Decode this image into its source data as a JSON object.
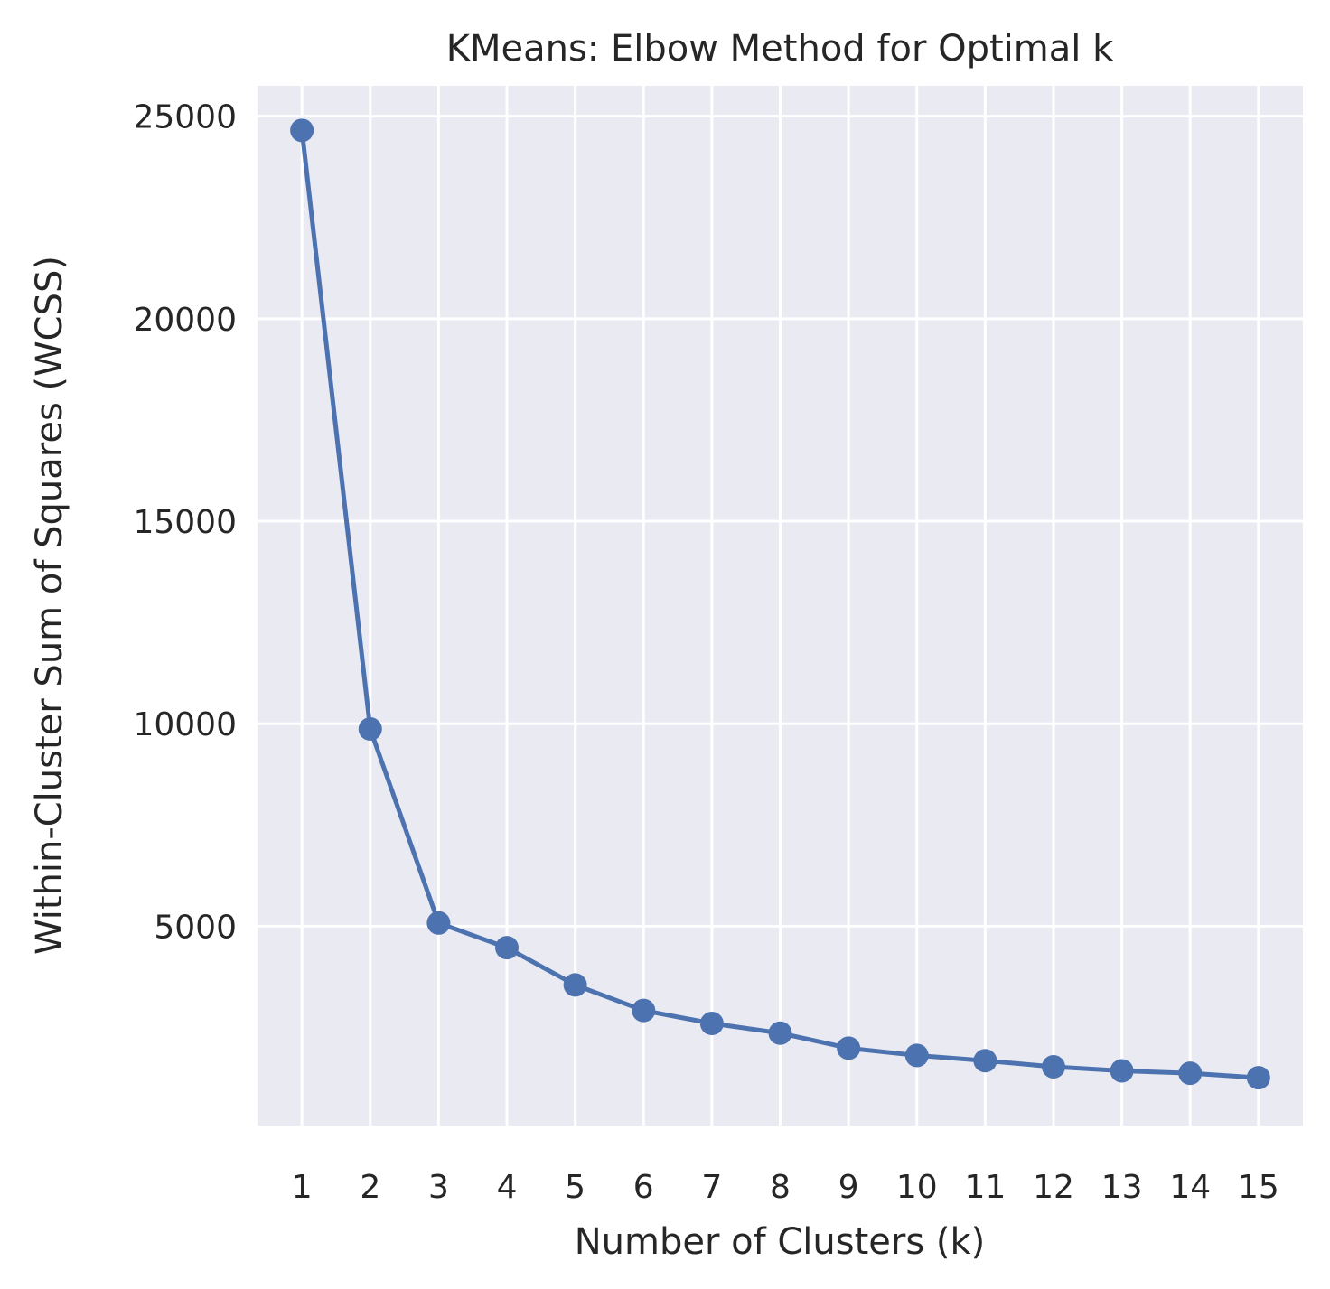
{
  "chart_data": {
    "type": "line",
    "title": "KMeans: Elbow Method for Optimal k",
    "xlabel": "Number of Clusters (k)",
    "ylabel": "Within-Cluster Sum of Squares (WCSS)",
    "x": [
      1,
      2,
      3,
      4,
      5,
      6,
      7,
      8,
      9,
      10,
      11,
      12,
      13,
      14,
      15
    ],
    "x_ticks": [
      1,
      2,
      3,
      4,
      5,
      6,
      7,
      8,
      9,
      10,
      11,
      12,
      13,
      14,
      15
    ],
    "x_tick_labels": [
      "1",
      "2",
      "3",
      "4",
      "5",
      "6",
      "7",
      "8",
      "9",
      "10",
      "11",
      "12",
      "13",
      "14",
      "15"
    ],
    "y_ticks": [
      5000,
      10000,
      15000,
      20000,
      25000
    ],
    "y_tick_labels": [
      "5000",
      "10000",
      "15000",
      "20000",
      "25000"
    ],
    "xlim": [
      0.35,
      15.65
    ],
    "ylim": [
      80,
      25750
    ],
    "grid": true,
    "legend": "none",
    "series": [
      {
        "color": "#4c72b0",
        "marker": "circle",
        "values": [
          24650,
          9870,
          5080,
          4470,
          3550,
          2920,
          2600,
          2360,
          1990,
          1810,
          1680,
          1530,
          1430,
          1370,
          1260
        ]
      }
    ],
    "style": {
      "background": "#eaeaf2",
      "grid_color": "#ffffff",
      "text_color": "#262626"
    }
  }
}
